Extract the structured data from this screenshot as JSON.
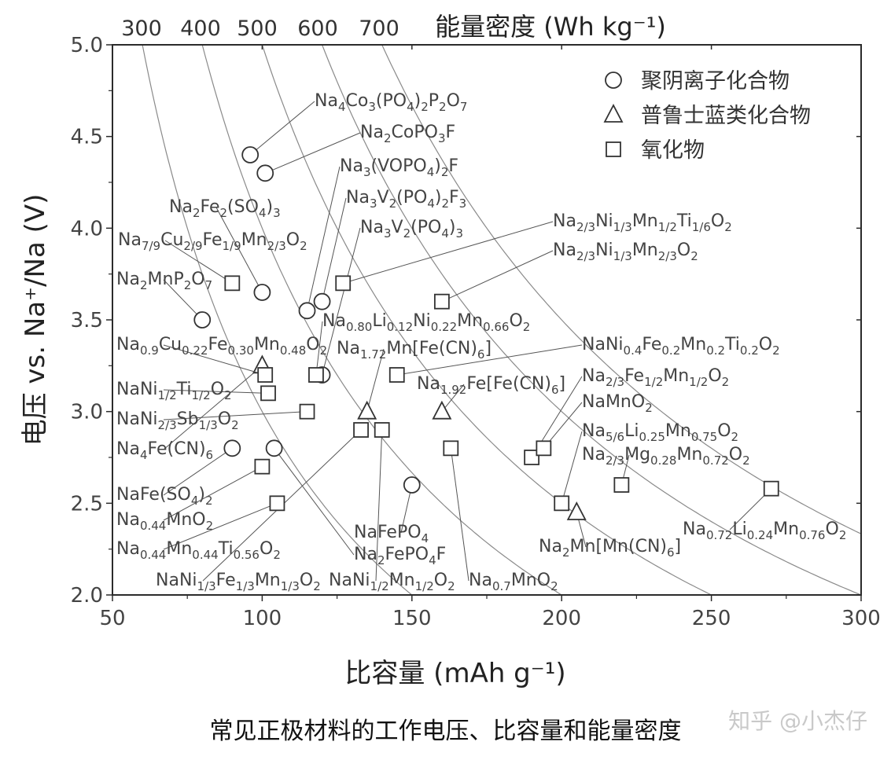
{
  "chart_data": {
    "type": "scatter",
    "xlabel": "比容量 (mAh g⁻¹)",
    "ylabel": "电压 vs. Na⁺/Na (V)",
    "top_axis_label": "能量密度 (Wh kg⁻¹)",
    "xlim": [
      50,
      300
    ],
    "ylim": [
      2.0,
      5.0
    ],
    "x_ticks": [
      "50",
      "100",
      "150",
      "200",
      "250",
      "300"
    ],
    "y_ticks": [
      "2.0",
      "2.5",
      "3.0",
      "3.5",
      "4.0",
      "4.5",
      "5.0"
    ],
    "energy_density_curves": [
      300,
      400,
      500,
      600,
      700
    ],
    "top_ticks": [
      "300",
      "400",
      "500",
      "600",
      "700"
    ],
    "legend_position": "top-right",
    "legend": [
      {
        "marker": "circle",
        "label": "聚阴离子化合物"
      },
      {
        "marker": "triangle",
        "label": "普鲁士蓝类化合物"
      },
      {
        "marker": "square",
        "label": "氧化物"
      }
    ],
    "series": [
      {
        "name": "聚阴离子化合物",
        "marker": "circle",
        "points": [
          {
            "x": 96,
            "y": 4.4,
            "label": "Na4Co3(PO4)2P2O7"
          },
          {
            "x": 101,
            "y": 4.3,
            "label": "Na2CoPO3F"
          },
          {
            "x": 115,
            "y": 3.55,
            "label": "Na3(VOPO4)2F"
          },
          {
            "x": 120,
            "y": 3.6,
            "label": "Na3V2(PO4)2F3"
          },
          {
            "x": 100,
            "y": 3.65,
            "label": "Na2Fe2(SO4)3"
          },
          {
            "x": 80,
            "y": 3.5,
            "label": "Na2MnP2O7"
          },
          {
            "x": 120,
            "y": 3.2,
            "label": "Na3V2(PO4)3"
          },
          {
            "x": 90,
            "y": 2.8,
            "label": "NaFe(SO4)2"
          },
          {
            "x": 104,
            "y": 2.8,
            "label": "Na2FePO4F"
          },
          {
            "x": 150,
            "y": 2.6,
            "label": "NaFePO4"
          }
        ]
      },
      {
        "name": "普鲁士蓝类化合物",
        "marker": "triangle",
        "points": [
          {
            "x": 100,
            "y": 3.25,
            "label": "Na4Fe(CN)6"
          },
          {
            "x": 135,
            "y": 3.0,
            "label": "Na1.72Mn[Fe(CN)6]"
          },
          {
            "x": 160,
            "y": 3.0,
            "label": "Na1.92Fe[Fe(CN)6]"
          },
          {
            "x": 205,
            "y": 2.45,
            "label": "Na2Mn[Mn(CN)6]"
          }
        ]
      },
      {
        "name": "氧化物",
        "marker": "square",
        "points": [
          {
            "x": 90,
            "y": 3.7,
            "label": "Na7/9Cu2/9Fe1/9Mn2/3O2"
          },
          {
            "x": 127,
            "y": 3.7,
            "label": "Na2/3Ni1/3Mn1/2Ti1/6O2"
          },
          {
            "x": 160,
            "y": 3.6,
            "label": "Na2/3Ni1/3Mn2/3O2"
          },
          {
            "x": 118,
            "y": 3.2,
            "label": "Na0.80Li0.12Ni0.22Mn0.66O2"
          },
          {
            "x": 101,
            "y": 3.2,
            "label": "Na0.9Cu0.22Fe0.30Mn0.48O2"
          },
          {
            "x": 102,
            "y": 3.1,
            "label": "NaNi1/2Ti1/2O2"
          },
          {
            "x": 115,
            "y": 3.0,
            "label": "NaNi2/3Sb1/3O2"
          },
          {
            "x": 145,
            "y": 3.2,
            "label": "NaNi0.4Fe0.2Mn0.2Ti0.2O2"
          },
          {
            "x": 190,
            "y": 2.75,
            "label": "Na2/3Fe1/2Mn1/2O2"
          },
          {
            "x": 194,
            "y": 2.8,
            "label": "NaMnO2"
          },
          {
            "x": 200,
            "y": 2.5,
            "label": "Na5/6Li0.25Mn0.75O2"
          },
          {
            "x": 220,
            "y": 2.6,
            "label": "Na2/3Mg0.28Mn0.72O2"
          },
          {
            "x": 270,
            "y": 2.58,
            "label": "Na0.72Li0.24Mn0.76O2"
          },
          {
            "x": 100,
            "y": 2.7,
            "label": "Na0.44MnO2"
          },
          {
            "x": 105,
            "y": 2.5,
            "label": "Na0.44Mn0.44Ti0.56O2"
          },
          {
            "x": 133,
            "y": 2.9,
            "label": "NaNi1/3Fe1/3Mn1/3O2"
          },
          {
            "x": 140,
            "y": 2.9,
            "label": "NaNi1/2Mn1/2O2"
          },
          {
            "x": 163,
            "y": 2.8,
            "label": "Na0.7MnO2"
          }
        ]
      }
    ]
  },
  "caption": "常见正极材料的工作电压、比容量和能量密度",
  "watermark": "知乎 @小杰仔",
  "colors": {
    "axis": "#2b2b2b",
    "curve": "#8a8a8a",
    "marker": "#333333",
    "text": "#444444"
  }
}
